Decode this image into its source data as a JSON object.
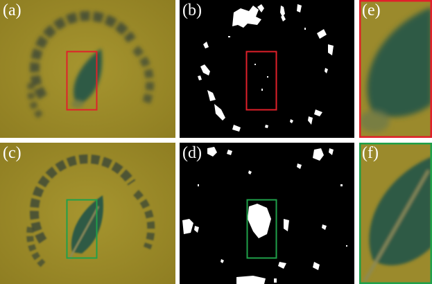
{
  "panels": [
    {
      "id": "a",
      "label": "(a)"
    },
    {
      "id": "b",
      "label": "(b)"
    },
    {
      "id": "e",
      "label": "(e)"
    },
    {
      "id": "c",
      "label": "(c)"
    },
    {
      "id": "d",
      "label": "(d)"
    },
    {
      "id": "f",
      "label": "(f)"
    }
  ],
  "colors": {
    "photo_background": "#9b8a2c",
    "leaf": "#2f5a44",
    "lettering": "#3f4a35",
    "mask_background": "#000000",
    "mask_foreground": "#ffffff",
    "box_red": "#e0202a",
    "box_green": "#1fa04a"
  }
}
